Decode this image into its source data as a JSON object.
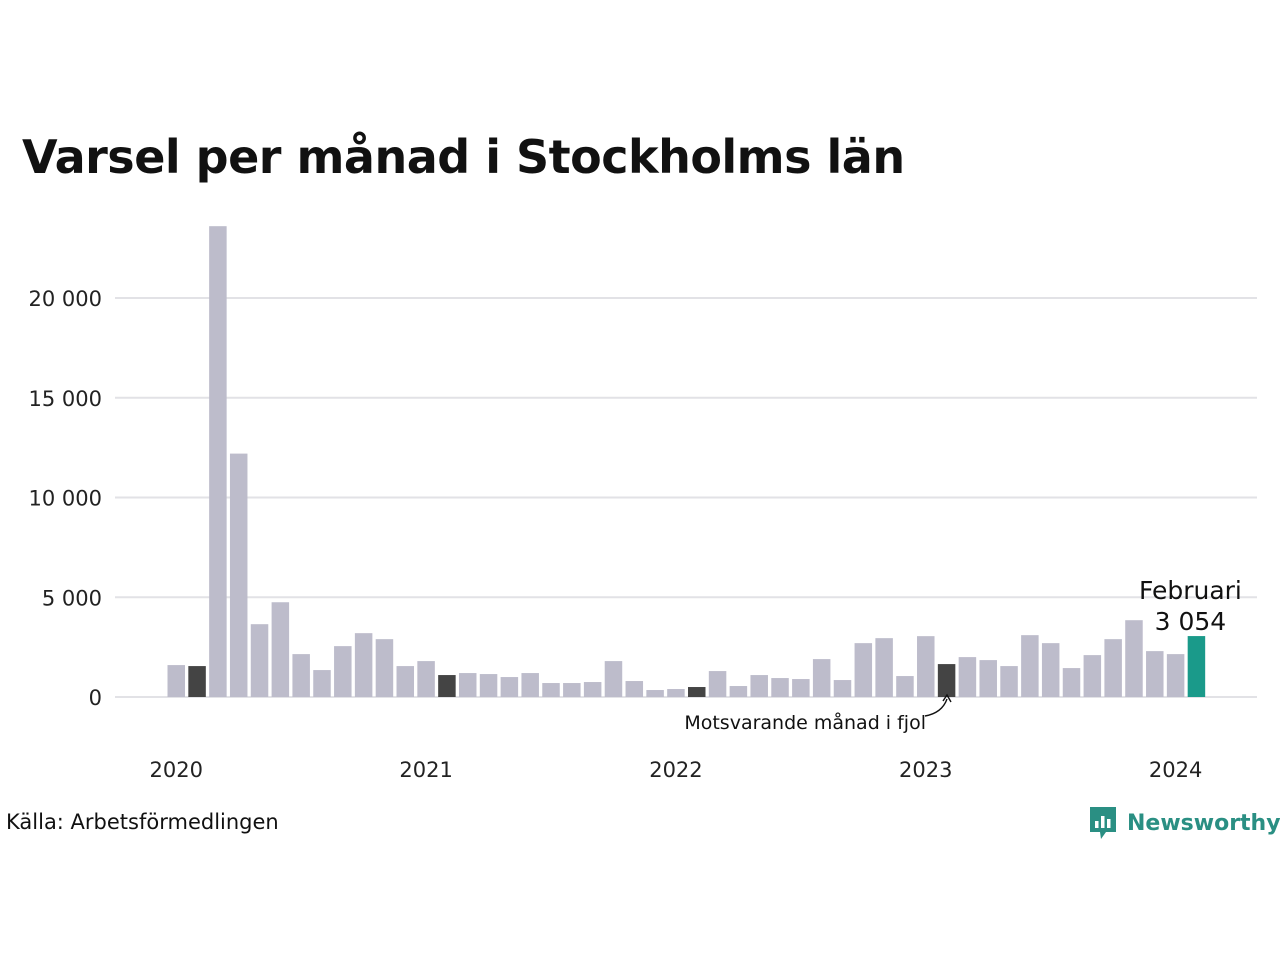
{
  "title": "Varsel per månad i Stockholms län",
  "source": "Källa: Arbetsförmedlingen",
  "brand": {
    "name": "Newsworthy",
    "icon": "bar-chart-speech-bubble-icon"
  },
  "colors": {
    "bar": "#bdbccb",
    "same_month_last_year": "#444444",
    "highlight": "#1a9a8a",
    "grid": "#e2e2e6"
  },
  "chart_data": {
    "type": "bar",
    "title": "Varsel per månad i Stockholms län",
    "xlabel": "",
    "ylabel": "",
    "ylim": [
      0,
      24000
    ],
    "yticks": [
      0,
      5000,
      10000,
      15000,
      20000
    ],
    "ytick_labels": [
      "0",
      "5 000",
      "10 000",
      "15 000",
      "20 000"
    ],
    "xtick_labels": [
      "2020",
      "2021",
      "2022",
      "2023",
      "2024"
    ],
    "grid": true,
    "categories": [
      "2020-01",
      "2020-02",
      "2020-03",
      "2020-04",
      "2020-05",
      "2020-06",
      "2020-07",
      "2020-08",
      "2020-09",
      "2020-10",
      "2020-11",
      "2020-12",
      "2021-01",
      "2021-02",
      "2021-03",
      "2021-04",
      "2021-05",
      "2021-06",
      "2021-07",
      "2021-08",
      "2021-09",
      "2021-10",
      "2021-11",
      "2021-12",
      "2022-01",
      "2022-02",
      "2022-03",
      "2022-04",
      "2022-05",
      "2022-06",
      "2022-07",
      "2022-08",
      "2022-09",
      "2022-10",
      "2022-11",
      "2022-12",
      "2023-01",
      "2023-02",
      "2023-03",
      "2023-04",
      "2023-05",
      "2023-06",
      "2023-07",
      "2023-08",
      "2023-09",
      "2023-10",
      "2023-11",
      "2023-12",
      "2024-01",
      "2024-02"
    ],
    "values": [
      1600,
      1550,
      23600,
      12200,
      3650,
      4750,
      2150,
      1350,
      2550,
      3200,
      2900,
      1550,
      1800,
      1100,
      1200,
      1150,
      1000,
      1200,
      700,
      700,
      750,
      1800,
      800,
      350,
      400,
      500,
      1300,
      550,
      1100,
      950,
      900,
      1900,
      850,
      2700,
      2950,
      1050,
      3050,
      1650,
      2000,
      1850,
      1550,
      3100,
      2700,
      1450,
      2100,
      2900,
      3850,
      2300,
      2150,
      3054
    ],
    "same_month_last_year_months": [
      "2020-02",
      "2021-02",
      "2022-02",
      "2023-02"
    ],
    "highlight": {
      "month": "2024-02",
      "label": "Februari",
      "value_label": "3 054"
    },
    "annotation": "Motsvarande månad i fjol"
  }
}
